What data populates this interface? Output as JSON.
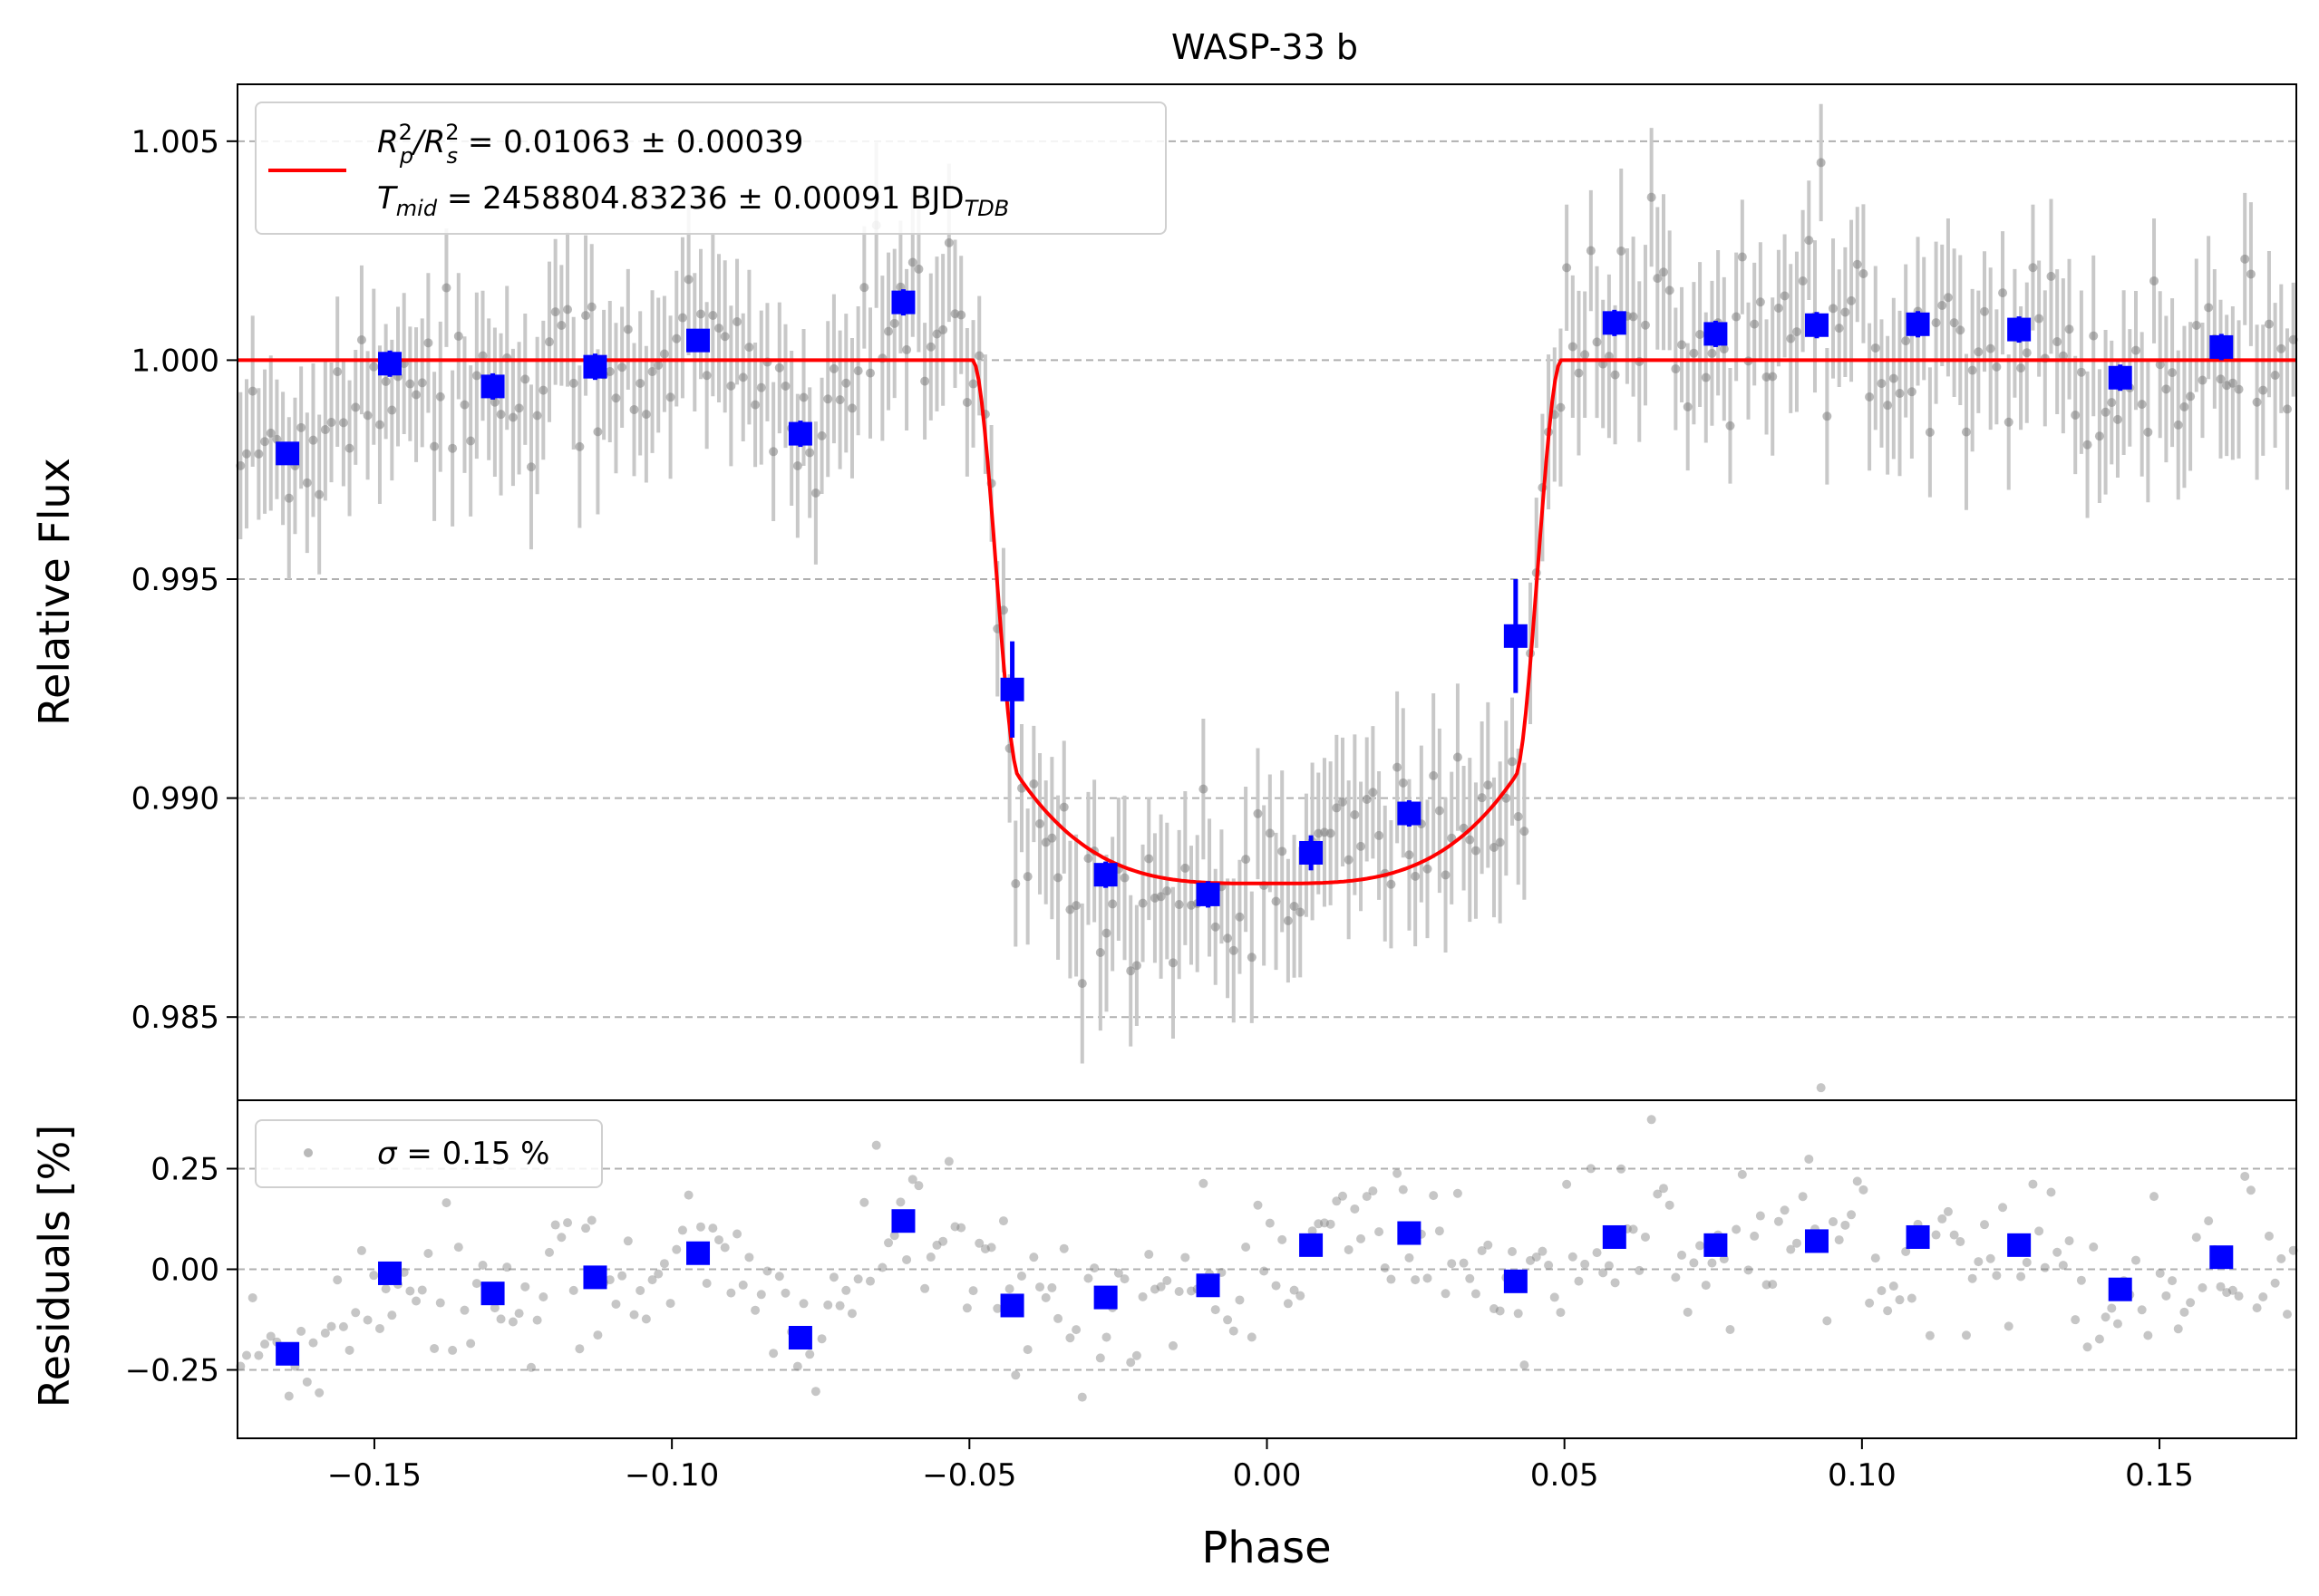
{
  "chart_data": [
    {
      "type": "scatter",
      "title": "WASP-33 b",
      "ylabel": "Relative Flux",
      "xlim": [
        -0.173,
        0.173
      ],
      "ylim": [
        0.9831,
        1.0063
      ],
      "yticks": [
        0.985,
        0.99,
        0.995,
        1.0,
        1.005
      ],
      "ytick_labels": [
        "0.985",
        "0.990",
        "0.995",
        "1.000",
        "1.005"
      ],
      "grid": "horizontal dashed",
      "legend": {
        "position": "top-left",
        "line1_prefix": "R",
        "line1_sub1": "p",
        "line1_sup1": "2",
        "line1_slash": "/R",
        "line1_sub2": "s",
        "line1_sup2": "2",
        "line1_value": " = 0.01063 ± 0.00039",
        "line2_prefix": "T",
        "line2_sub": "mid",
        "line2_value": " = 2458804.83236 ± 0.00091 BJD",
        "line2_unit_sub": "TDB"
      },
      "model": {
        "color": "#ff0000",
        "baseline": 1.0,
        "depth_center": 0.98805,
        "ingress_x": [
          -0.0495,
          -0.0415
        ],
        "egress_x": [
          0.0415,
          0.0495
        ],
        "ledge": 0.99045
      },
      "binned": {
        "color": "#0000ff",
        "x": [
          -0.1646,
          -0.1474,
          -0.1301,
          -0.1129,
          -0.0956,
          -0.0784,
          -0.0611,
          -0.0428,
          -0.0271,
          -0.0099,
          0.0074,
          0.0239,
          0.0418,
          0.0584,
          0.0754,
          0.0924,
          0.1094,
          0.1264,
          0.1434,
          0.1604
        ],
        "y": [
          0.99787,
          0.99992,
          0.9994,
          0.99985,
          1.00045,
          0.99832,
          1.00132,
          0.99248,
          0.98825,
          0.9878,
          0.98875,
          0.98965,
          0.9937,
          1.00085,
          1.0006,
          1.0008,
          1.00082,
          1.0007,
          0.9996,
          1.0003
        ],
        "yerr": [
          0.0001,
          0.0003,
          0.0003,
          0.0003,
          0.0002,
          0.0003,
          0.0003,
          0.0011,
          0.0003,
          0.0003,
          0.0004,
          0.0003,
          0.0013,
          0.0003,
          0.0003,
          0.0003,
          0.0003,
          0.0003,
          0.0003,
          0.0003
        ]
      }
    },
    {
      "type": "scatter",
      "xlabel": "Phase",
      "ylabel": "Residuals [%]",
      "xlim": [
        -0.173,
        0.173
      ],
      "ylim": [
        -0.42,
        0.42
      ],
      "xticks": [
        -0.15,
        -0.1,
        -0.05,
        0.0,
        0.05,
        0.1,
        0.15
      ],
      "xtick_labels": [
        "−0.15",
        "−0.10",
        "−0.05",
        "0.00",
        "0.05",
        "0.10",
        "0.15"
      ],
      "yticks": [
        -0.25,
        0.0,
        0.25
      ],
      "ytick_labels": [
        "−0.25",
        "0.00",
        "0.25"
      ],
      "grid": "horizontal dashed",
      "legend": {
        "position": "top-left",
        "symbol": "σ",
        "value": " = 0.15 %"
      },
      "binned": {
        "color": "#0000ff",
        "x": [
          -0.1646,
          -0.1474,
          -0.1301,
          -0.1129,
          -0.0956,
          -0.0784,
          -0.0611,
          -0.0428,
          -0.0271,
          -0.0099,
          0.0074,
          0.0239,
          0.0418,
          0.0584,
          0.0754,
          0.0924,
          0.1094,
          0.1264,
          0.1434,
          0.1604
        ],
        "y": [
          -0.21,
          -0.01,
          -0.06,
          -0.02,
          0.04,
          -0.17,
          0.12,
          -0.09,
          -0.07,
          -0.04,
          0.06,
          0.09,
          -0.03,
          0.08,
          0.06,
          0.07,
          0.08,
          0.06,
          -0.05,
          0.03
        ]
      }
    }
  ],
  "colors": {
    "model": "#ff0000",
    "binned": "#0000ff",
    "raw_points": "#808080",
    "raw_errorbars": "#c8c8c8",
    "grid": "#b0b0b0"
  }
}
